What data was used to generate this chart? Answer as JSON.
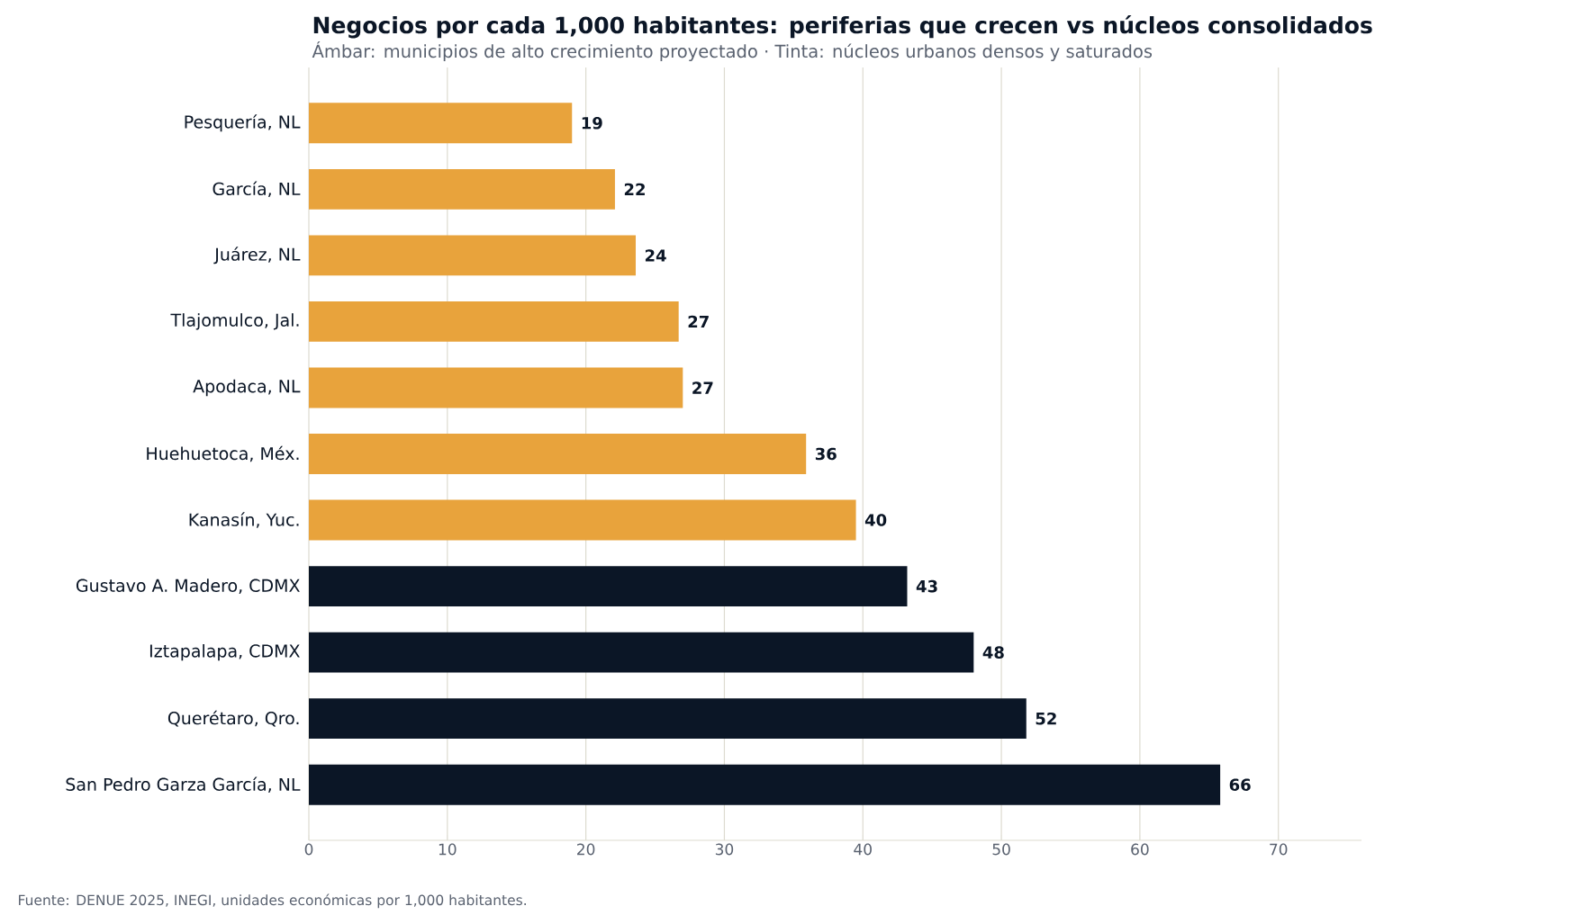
{
  "chart_data": {
    "type": "bar",
    "orientation": "horizontal",
    "title": "Negocios por cada 1,000 habitantes: periferias que crecen vs núcleos consolidados",
    "subtitle": "Ámbar: municipios de alto crecimiento proyectado · Tinta: núcleos urbanos densos y saturados",
    "categories": [
      "Pesquería, NL",
      "García, NL",
      "Juárez, NL",
      "Tlajomulco, Jal.",
      "Apodaca, NL",
      "Huehuetoca, Méx.",
      "Kanasín, Yuc.",
      "Gustavo A. Madero, CDMX",
      "Iztapalapa, CDMX",
      "Querétaro, Qro.",
      "San Pedro Garza García, NL"
    ],
    "values": [
      19.0,
      22.1,
      23.6,
      26.7,
      27.0,
      35.9,
      39.5,
      43.2,
      48.0,
      51.8,
      65.8
    ],
    "value_labels": [
      "19",
      "22",
      "24",
      "27",
      "27",
      "36",
      "40",
      "43",
      "48",
      "52",
      "66"
    ],
    "colors": [
      "#e8a33c",
      "#e8a33c",
      "#e8a33c",
      "#e8a33c",
      "#e8a33c",
      "#e8a33c",
      "#e8a33c",
      "#0b1626",
      "#0b1626",
      "#0b1626",
      "#0b1626"
    ],
    "xlim": [
      0,
      76
    ],
    "xticks": [
      0,
      10,
      20,
      30,
      40,
      50,
      60,
      70
    ],
    "grid": "x",
    "annotations": [
      "Fuente: DENUE 2025, INEGI, unidades económicas por 1,000 habitantes."
    ]
  }
}
